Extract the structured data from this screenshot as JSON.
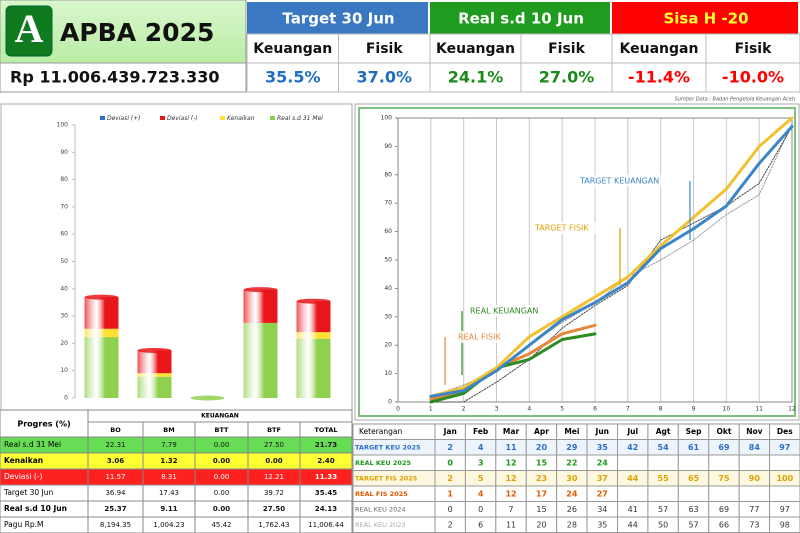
{
  "header": {
    "logo": "A",
    "title": "APBA 2025",
    "amount": "Rp 11.006.439.723.330",
    "groups": [
      {
        "title": "Target 30 Jun",
        "cols": [
          "Keuangan",
          "Fisik"
        ],
        "values": [
          "35.5%",
          "37.0%"
        ]
      },
      {
        "title": "Real s.d 10 Jun",
        "cols": [
          "Keuangan",
          "Fisik"
        ],
        "values": [
          "24.1%",
          "27.0%"
        ]
      },
      {
        "title": "Sisa H -20",
        "cols": [
          "Keuangan",
          "Fisik"
        ],
        "values": [
          "-11.4%",
          "-10.0%"
        ]
      }
    ],
    "source": "Sumber Data : Badan Pengelola Keuangan Aceh"
  },
  "chart_data": [
    {
      "type": "stacked-bar",
      "ylim": [
        0,
        100
      ],
      "yticks": [
        0,
        10,
        20,
        30,
        40,
        50,
        60,
        70,
        80,
        90,
        100
      ],
      "grid": false,
      "legend": "top",
      "series": [
        {
          "name": "Real s.d 31 Mei",
          "color": "#8fd14f",
          "values": [
            22.31,
            7.79,
            0,
            27.5,
            21.73
          ]
        },
        {
          "name": "Kenaikan",
          "color": "#ffe033",
          "values": [
            3.06,
            1.32,
            0,
            0,
            2.4
          ]
        },
        {
          "name": "Deviasi (-)",
          "color": "#e8151b",
          "values": [
            11.57,
            8.31,
            0,
            12.21,
            11.33
          ]
        },
        {
          "name": "Deviasi (+)",
          "color": "#2e6fc4",
          "values": [
            0,
            0,
            0,
            0,
            0
          ]
        }
      ]
    },
    {
      "type": "line",
      "x": [
        1,
        2,
        3,
        4,
        5,
        6,
        7,
        8,
        9,
        10,
        11,
        12
      ],
      "xlim": [
        0,
        12
      ],
      "xticks": [
        0,
        1,
        2,
        3,
        4,
        5,
        6,
        7,
        8,
        9,
        10,
        11,
        12
      ],
      "ylim": [
        0,
        100
      ],
      "yticks": [
        0,
        10,
        20,
        30,
        40,
        50,
        60,
        70,
        80,
        90,
        100
      ],
      "grid": "x",
      "series": [
        {
          "name": "TARGET KEU 2025",
          "color": "#3d85c6",
          "style": "solid",
          "values": [
            2,
            4,
            11,
            20,
            29,
            35,
            42,
            54,
            61,
            69,
            84,
            97
          ]
        },
        {
          "name": "REAL KEU 2025",
          "color": "#2e8b22",
          "style": "solid",
          "values": [
            0,
            3,
            12,
            15,
            22,
            24,
            null,
            null,
            null,
            null,
            null,
            null
          ]
        },
        {
          "name": "TARGET FIS 2025",
          "color": "#f2c12e",
          "style": "solid",
          "values": [
            2,
            5,
            12,
            23,
            30,
            37,
            44,
            55,
            65,
            75,
            90,
            100
          ]
        },
        {
          "name": "REAL FIS 2025",
          "color": "#e8873a",
          "style": "solid",
          "values": [
            1,
            4,
            12,
            17,
            24,
            27,
            null,
            null,
            null,
            null,
            null,
            null
          ]
        },
        {
          "name": "REAL KEU 2024",
          "color": "#444444",
          "style": "dotted",
          "values": [
            0,
            0,
            7,
            15,
            26,
            34,
            41,
            57,
            63,
            69,
            77,
            97
          ]
        },
        {
          "name": "REAL KEU 2023",
          "color": "#999999",
          "style": "dotted",
          "values": [
            2,
            6,
            11,
            20,
            28,
            35,
            44,
            50,
            57,
            66,
            73,
            98
          ]
        }
      ],
      "annotations": [
        {
          "text": "TARGET KEUANGAN",
          "color": "#3d85c6"
        },
        {
          "text": "TARGET FISIK",
          "color": "#e0a000"
        },
        {
          "text": "REAL KEUANGAN",
          "color": "#2e8b22"
        },
        {
          "text": "REAL FISIK",
          "color": "#e8873a"
        }
      ]
    }
  ],
  "progress_table": {
    "corner": "Progres (%)",
    "group": "KEUANGAN",
    "columns": [
      "BO",
      "BM",
      "BTT",
      "BTF",
      "TOTAL"
    ],
    "rows": [
      {
        "label": "Real s.d 31 Mei",
        "cells": [
          "22.31",
          "7.79",
          "0.00",
          "27.50",
          "21.73"
        ]
      },
      {
        "label": "Kenaikan",
        "cells": [
          "3.06",
          "1.32",
          "0.00",
          "0.00",
          "2.40"
        ]
      },
      {
        "label": "Deviasi  (-)",
        "cells": [
          "11.57",
          "8.31",
          "0.00",
          "12.21",
          "11.33"
        ]
      },
      {
        "label": "Target 30 Jun",
        "cells": [
          "36.94",
          "17.43",
          "0.00",
          "39.72",
          "35.45"
        ]
      },
      {
        "label": "Real s.d 10 Jun",
        "cells": [
          "25.37",
          "9.11",
          "0.00",
          "27.50",
          "24.13"
        ]
      },
      {
        "label": "Pagu Rp.M",
        "cells": [
          "8,194.35",
          "1,004.23",
          "45.42",
          "1,762.43",
          "11,006.44"
        ]
      }
    ]
  },
  "monthly_table": {
    "header": "Keterangan",
    "months": [
      "Jan",
      "Feb",
      "Mar",
      "Apr",
      "Mei",
      "Jun",
      "Jul",
      "Agt",
      "Sep",
      "Okt",
      "Nov",
      "Des"
    ]
  }
}
